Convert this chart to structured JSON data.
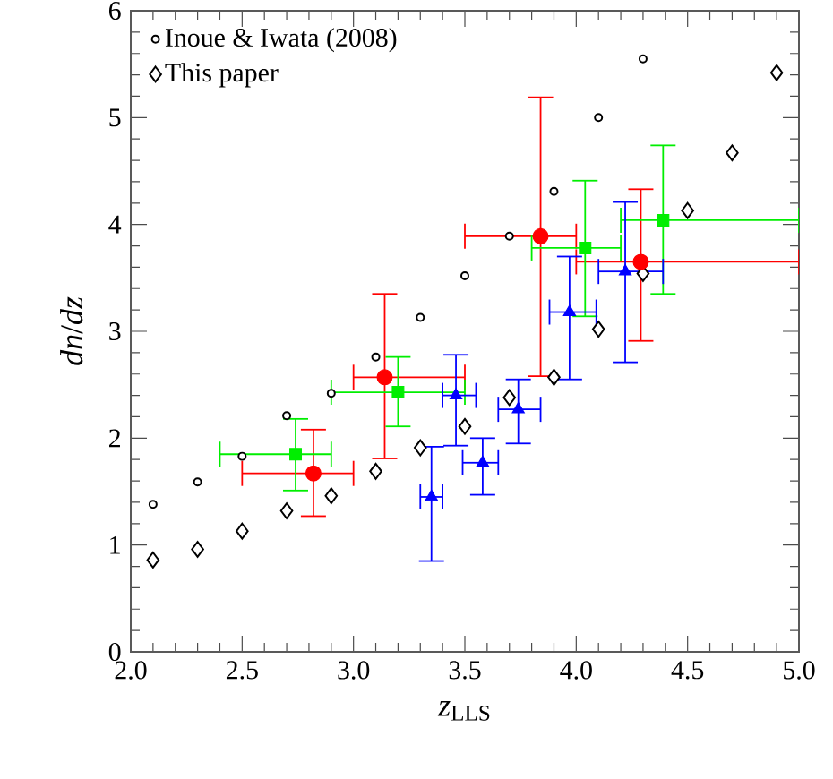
{
  "chart_data": {
    "type": "scatter",
    "xlabel": "*z*$_{LLS}$",
    "ylabel": "*dn*/*dz*",
    "xlim": [
      2,
      5
    ],
    "ylim": [
      0,
      6
    ],
    "xticks": [
      {
        "value": 2,
        "label": "2.0"
      },
      {
        "value": 2.5,
        "label": "2.5"
      },
      {
        "value": 3,
        "label": "3.0"
      },
      {
        "value": 3.5,
        "label": "3.5"
      },
      {
        "value": 4,
        "label": "4.0"
      },
      {
        "value": 4.5,
        "label": "4.5"
      },
      {
        "value": 5,
        "label": "5.0"
      }
    ],
    "yticks": [
      0,
      1,
      2,
      3,
      4,
      5,
      6
    ],
    "grid": false,
    "legend": "top left",
    "series": [
      {
        "name": "Inoue & Iwata (2008)",
        "color": "#000000",
        "marker": "circle",
        "x": [
          2.1,
          2.3,
          2.5,
          2.7,
          2.9,
          3.1,
          3.3,
          3.5,
          3.7,
          3.9,
          4.1,
          4.3
        ],
        "values": [
          1.38,
          1.59,
          1.83,
          2.21,
          2.42,
          2.76,
          3.13,
          3.52,
          3.89,
          4.31,
          5.0,
          5.55
        ]
      },
      {
        "name": "This paper",
        "color": "#000000",
        "marker": "diamond",
        "x": [
          2.1,
          2.3,
          2.5,
          2.7,
          2.9,
          3.1,
          3.3,
          3.5,
          3.7,
          3.9,
          4.1,
          4.3,
          4.5,
          4.7,
          4.9
        ],
        "values": [
          0.86,
          0.96,
          1.13,
          1.32,
          1.46,
          1.69,
          1.91,
          2.11,
          2.38,
          2.57,
          3.02,
          3.54,
          4.13,
          4.67,
          5.42
        ]
      },
      {
        "color": "#ff0000",
        "marker": "circle",
        "x": [
          2.82,
          3.14,
          3.84,
          4.29
        ],
        "values": [
          1.67,
          2.57,
          3.89,
          3.65
        ],
        "xerrors": [
          [
            2.5,
            3.0
          ],
          [
            3.0,
            3.5
          ],
          [
            3.5,
            4.0
          ],
          [
            4.0,
            5.0
          ]
        ],
        "errors": [
          [
            1.27,
            2.08
          ],
          [
            1.81,
            3.35
          ],
          [
            2.58,
            5.19
          ],
          [
            2.91,
            4.33
          ]
        ]
      },
      {
        "color": "#00ee00",
        "marker": "square",
        "x": [
          2.74,
          3.2,
          4.04,
          4.39
        ],
        "values": [
          1.85,
          2.43,
          3.78,
          4.04
        ],
        "xerrors": [
          [
            2.4,
            2.9
          ],
          [
            2.9,
            3.5
          ],
          [
            3.8,
            4.2
          ],
          [
            4.2,
            5.0
          ]
        ],
        "errors": [
          [
            1.51,
            2.18
          ],
          [
            2.11,
            2.76
          ],
          [
            3.14,
            4.41
          ],
          [
            3.35,
            4.74
          ]
        ]
      },
      {
        "color": "#0000ff",
        "marker": "triangle",
        "x": [
          3.35,
          3.46,
          3.58,
          3.74,
          3.97,
          4.22
        ],
        "values": [
          1.45,
          2.4,
          1.77,
          2.27,
          3.18,
          3.56
        ],
        "xerrors": [
          [
            3.3,
            3.4
          ],
          [
            3.4,
            3.55
          ],
          [
            3.49,
            3.65
          ],
          [
            3.65,
            3.84
          ],
          [
            3.88,
            4.09
          ],
          [
            4.1,
            4.39
          ]
        ],
        "errors": [
          [
            0.85,
            1.92
          ],
          [
            1.93,
            2.78
          ],
          [
            1.47,
            2.0
          ],
          [
            1.95,
            2.55
          ],
          [
            2.55,
            3.7
          ],
          [
            2.71,
            4.21
          ]
        ]
      }
    ]
  }
}
